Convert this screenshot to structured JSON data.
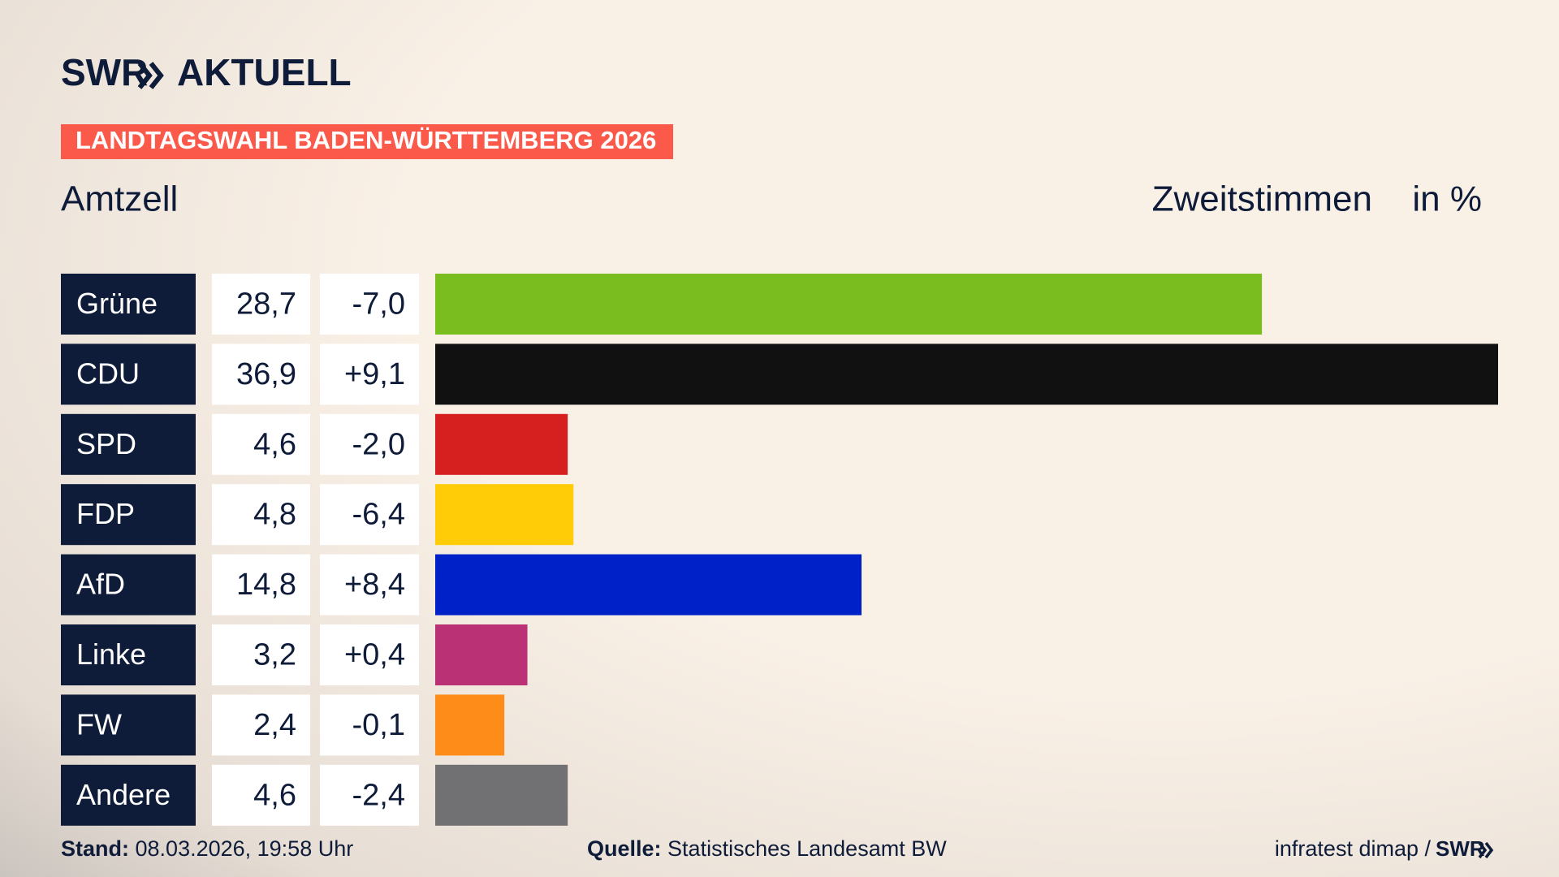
{
  "header": {
    "logo": "SWR",
    "logo_suffix": "AKTUELL",
    "banner": "LANDTAGSWAHL BADEN-WÜRTTEMBERG 2026"
  },
  "chart_data": {
    "type": "bar",
    "title": "Amtzell",
    "subtitle": "Zweitstimmen",
    "unit": "in %",
    "categories": [
      "Grüne",
      "CDU",
      "SPD",
      "FDP",
      "AfD",
      "Linke",
      "FW",
      "Andere"
    ],
    "values": [
      28.7,
      36.9,
      4.6,
      4.8,
      14.8,
      3.2,
      2.4,
      4.6
    ],
    "value_labels": [
      "28,7",
      "36,9",
      "4,6",
      "4,8",
      "14,8",
      "3,2",
      "2,4",
      "4,6"
    ],
    "changes": [
      -7.0,
      9.1,
      -2.0,
      -6.4,
      8.4,
      0.4,
      -0.1,
      -2.4
    ],
    "change_labels": [
      "-7,0",
      "+9,1",
      "-2,0",
      "-6,4",
      "+8,4",
      "+0,4",
      "-0,1",
      "-2,4"
    ],
    "colors": [
      "#7abd1e",
      "#111111",
      "#d6201f",
      "#ffcc07",
      "#0021c8",
      "#bb3175",
      "#fd8c18",
      "#717173"
    ]
  },
  "footer": {
    "stand_label": "Stand:",
    "stand": "08.03.2026, 19:58 Uhr",
    "source_label": "Quelle:",
    "source": "Statistisches Landesamt BW",
    "credit": "infratest dimap /",
    "credit_logo": "SWR"
  }
}
